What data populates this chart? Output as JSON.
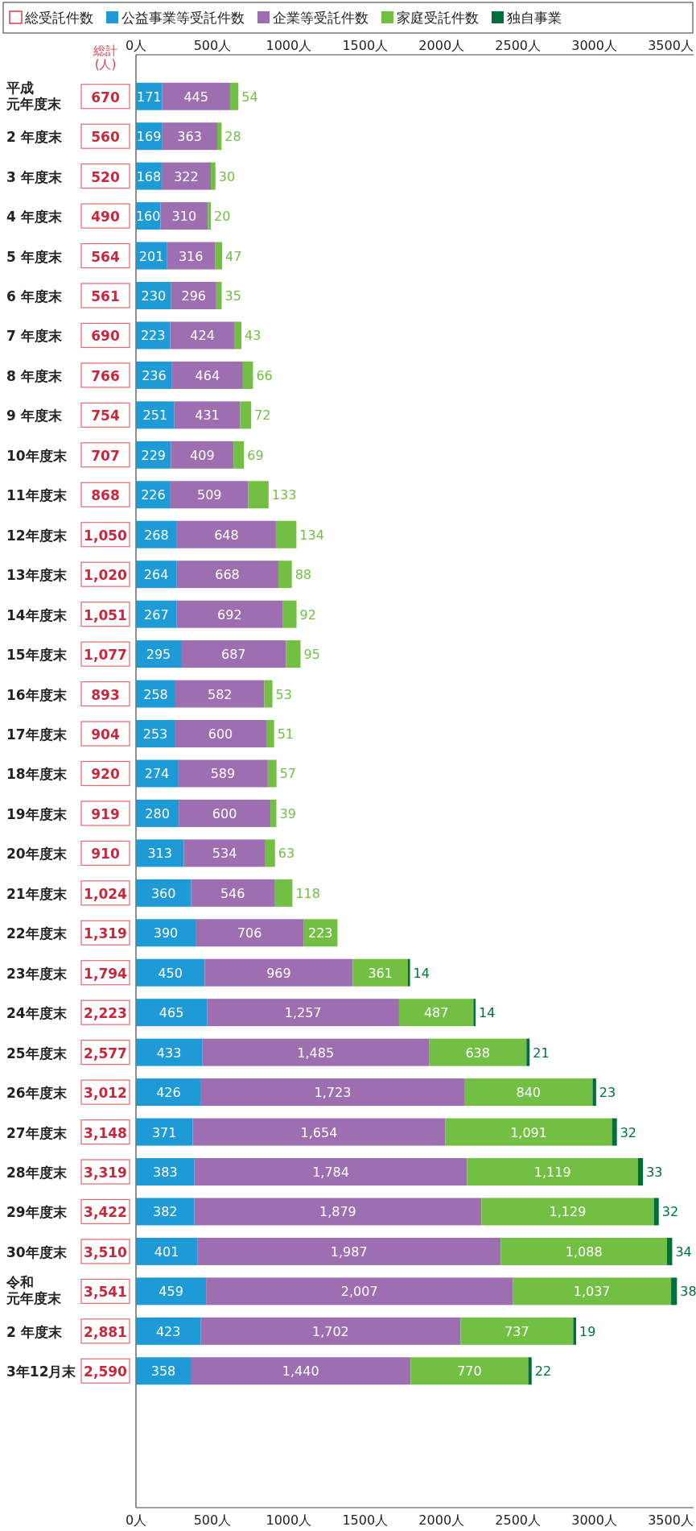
{
  "chart_data": {
    "type": "bar",
    "orientation": "horizontal",
    "stacked": true,
    "legend": "top",
    "grid": false,
    "categories": [
      "平成元年度末",
      "2 年度末",
      "3 年度末",
      "4 年度末",
      "5 年度末",
      "6 年度末",
      "7 年度末",
      "8 年度末",
      "9 年度末",
      "10年度末",
      "11年度末",
      "12年度末",
      "13年度末",
      "14年度末",
      "15年度末",
      "16年度末",
      "17年度末",
      "18年度末",
      "19年度末",
      "20年度末",
      "21年度末",
      "22年度末",
      "23年度末",
      "24年度末",
      "25年度末",
      "26年度末",
      "27年度末",
      "28年度末",
      "29年度末",
      "30年度末",
      "令和元年度末",
      "2 年度末",
      "3年12月末"
    ],
    "series": [
      {
        "name": "公益事業等受託件数",
        "color": "#1e9ad6",
        "values": [
          171,
          169,
          168,
          160,
          201,
          230,
          223,
          236,
          251,
          229,
          226,
          268,
          264,
          267,
          295,
          258,
          253,
          274,
          280,
          313,
          360,
          390,
          450,
          465,
          433,
          426,
          371,
          383,
          382,
          401,
          459,
          423,
          358
        ],
        "value_labels": [
          "171",
          "169",
          "168",
          "160",
          "201",
          "230",
          "223",
          "236",
          "251",
          "229",
          "226",
          "268",
          "264",
          "267",
          "295",
          "258",
          "253",
          "274",
          "280",
          "313",
          "360",
          "390",
          "450",
          "465",
          "433",
          "426",
          "371",
          "383",
          "382",
          "401",
          "459",
          "423",
          "358"
        ]
      },
      {
        "name": "企業等受託件数",
        "color": "#9e6fb0",
        "values": [
          445,
          363,
          322,
          310,
          316,
          296,
          424,
          464,
          431,
          409,
          509,
          648,
          668,
          692,
          687,
          582,
          600,
          589,
          600,
          534,
          546,
          706,
          969,
          1257,
          1485,
          1723,
          1654,
          1784,
          1879,
          1987,
          2007,
          1702,
          1440
        ],
        "value_labels": [
          "445",
          "363",
          "322",
          "310",
          "316",
          "296",
          "424",
          "464",
          "431",
          "409",
          "509",
          "648",
          "668",
          "692",
          "687",
          "582",
          "600",
          "589",
          "600",
          "534",
          "546",
          "706",
          "969",
          "1,257",
          "1,485",
          "1,723",
          "1,654",
          "1,784",
          "1,879",
          "1,987",
          "2,007",
          "1,702",
          "1,440"
        ]
      },
      {
        "name": "家庭受託件数",
        "color": "#72bf44",
        "values": [
          54,
          28,
          30,
          20,
          47,
          35,
          43,
          66,
          72,
          69,
          133,
          134,
          88,
          92,
          95,
          53,
          51,
          57,
          39,
          63,
          118,
          223,
          361,
          487,
          638,
          840,
          1091,
          1119,
          1129,
          1088,
          1037,
          737,
          770
        ],
        "value_labels": [
          "54",
          "28",
          "30",
          "20",
          "47",
          "35",
          "43",
          "66",
          "72",
          "69",
          "133",
          "134",
          "88",
          "92",
          "95",
          "53",
          "51",
          "57",
          "39",
          "63",
          "118",
          "223",
          "361",
          "487",
          "638",
          "840",
          "1,091",
          "1,119",
          "1,129",
          "1,088",
          "1,037",
          "737",
          "770"
        ]
      },
      {
        "name": "独自事業",
        "color": "#006f3c",
        "values": [
          null,
          null,
          null,
          null,
          null,
          null,
          null,
          null,
          null,
          null,
          null,
          null,
          null,
          null,
          null,
          null,
          null,
          null,
          null,
          null,
          null,
          null,
          14,
          14,
          21,
          23,
          32,
          33,
          32,
          34,
          38,
          19,
          22
        ],
        "value_labels": [
          null,
          null,
          null,
          null,
          null,
          null,
          null,
          null,
          null,
          null,
          null,
          null,
          null,
          null,
          null,
          null,
          null,
          null,
          null,
          null,
          null,
          null,
          "14",
          "14",
          "21",
          "23",
          "32",
          "33",
          "32",
          "34",
          "38",
          "19",
          "22"
        ]
      }
    ],
    "totals": [
      "670",
      "560",
      "520",
      "490",
      "564",
      "561",
      "690",
      "766",
      "754",
      "707",
      "868",
      "1,050",
      "1,020",
      "1,051",
      "1,077",
      "893",
      "904",
      "920",
      "919",
      "910",
      "1,024",
      "1,319",
      "1,794",
      "2,223",
      "2,577",
      "3,012",
      "3,148",
      "3,319",
      "3,422",
      "3,510",
      "3,541",
      "2,881",
      "2,590"
    ],
    "annotations": [
      "総受託件数",
      "総計\n(人)"
    ],
    "xlim": [
      0,
      3650
    ],
    "xticks": [
      {
        "value": 0,
        "label": "0人"
      },
      {
        "value": 500,
        "label": "500人"
      },
      {
        "value": 1000,
        "label": "1000人"
      },
      {
        "value": 1500,
        "label": "1500人"
      },
      {
        "value": 2000,
        "label": "2000人"
      },
      {
        "value": 2500,
        "label": "2500人"
      },
      {
        "value": 3000,
        "label": "3000人"
      },
      {
        "value": 3500,
        "label": "3500人"
      }
    ],
    "x2lim": [
      0,
      3650
    ],
    "x2ticks": [
      {
        "value": 0,
        "label": "0人"
      },
      {
        "value": 500,
        "label": "500人"
      },
      {
        "value": 1000,
        "label": "1000人"
      },
      {
        "value": 1500,
        "label": "1500人"
      },
      {
        "value": 2000,
        "label": "2000人"
      },
      {
        "value": 2500,
        "label": "2500人"
      },
      {
        "value": 3000,
        "label": "3000人"
      },
      {
        "value": 3500,
        "label": "3500人"
      }
    ]
  }
}
